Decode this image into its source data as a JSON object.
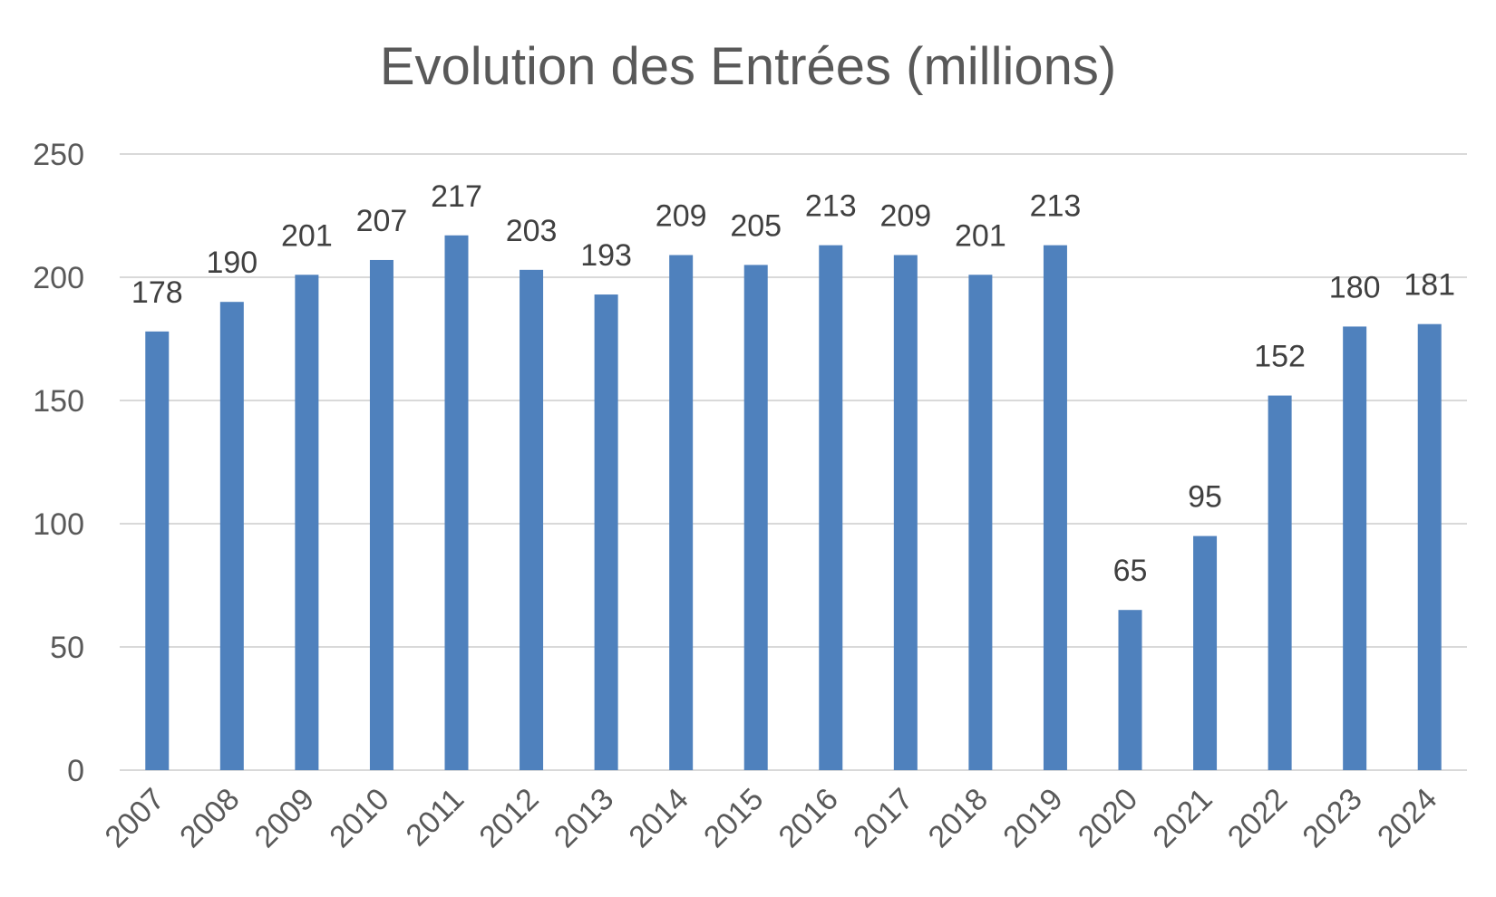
{
  "chart_data": {
    "type": "bar",
    "title": "Evolution des Entrées (millions)",
    "xlabel": "",
    "ylabel": "",
    "categories": [
      "2007",
      "2008",
      "2009",
      "2010",
      "2011",
      "2012",
      "2013",
      "2014",
      "2015",
      "2016",
      "2017",
      "2018",
      "2019",
      "2020",
      "2021",
      "2022",
      "2023",
      "2024"
    ],
    "values": [
      178,
      190,
      201,
      207,
      217,
      203,
      193,
      209,
      205,
      213,
      209,
      201,
      213,
      65,
      95,
      152,
      180,
      181
    ],
    "data_labels": [
      "178",
      "190",
      "201",
      "207",
      "217",
      "203",
      "193",
      "209",
      "205",
      "213",
      "209",
      "201",
      "213",
      "65",
      "95",
      "152",
      "180",
      "181"
    ],
    "yticks": [
      "0",
      "50",
      "100",
      "150",
      "200",
      "250"
    ],
    "ylim": [
      0,
      250
    ],
    "grid": true,
    "legend": "none",
    "bar_color": "#4f81bd",
    "grid_color": "#d9d9d9",
    "text_color": "#595959",
    "label_color": "#404040"
  }
}
